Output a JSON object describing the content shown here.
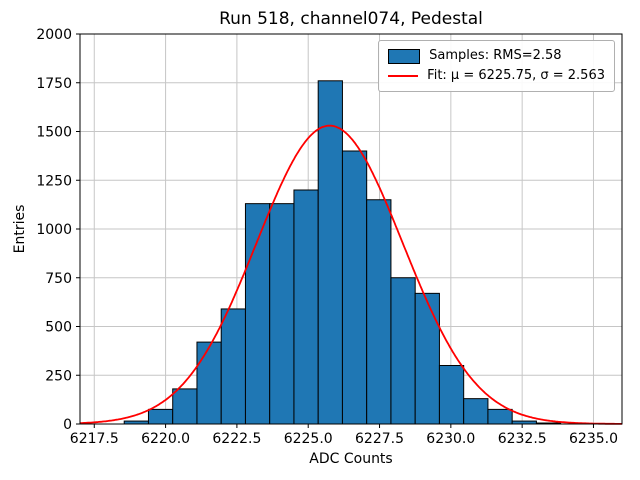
{
  "figure": {
    "title": "Run 518, channel074, Pedestal",
    "xlabel": "ADC Counts",
    "ylabel": "Entries"
  },
  "legend": {
    "samples_label": "Samples: RMS=2.58",
    "fit_label": "Fit: μ = 6225.75, σ = 2.563"
  },
  "chart_data": {
    "type": "bar",
    "subtype": "histogram",
    "title": "Run 518, channel074, Pedestal",
    "xlabel": "ADC Counts",
    "ylabel": "Entries",
    "xlim": [
      6217.0,
      6236.0
    ],
    "ylim": [
      0,
      2000
    ],
    "grid": true,
    "grid_color": "#c6c6c6",
    "legend_position": "upper right",
    "legend_entries": [
      "Samples: RMS=2.58",
      "Fit: μ = 6225.75, σ = 2.563"
    ],
    "xticks": [
      {
        "value": 6217.5,
        "label": "6217.5"
      },
      {
        "value": 6220.0,
        "label": "6220.0"
      },
      {
        "value": 6222.5,
        "label": "6222.5"
      },
      {
        "value": 6225.0,
        "label": "6225.0"
      },
      {
        "value": 6227.5,
        "label": "6227.5"
      },
      {
        "value": 6230.0,
        "label": "6230.0"
      },
      {
        "value": 6232.5,
        "label": "6232.5"
      },
      {
        "value": 6235.0,
        "label": "6235.0"
      }
    ],
    "yticks": [
      {
        "value": 0,
        "label": "0"
      },
      {
        "value": 250,
        "label": "250"
      },
      {
        "value": 500,
        "label": "500"
      },
      {
        "value": 750,
        "label": "750"
      },
      {
        "value": 1000,
        "label": "1000"
      },
      {
        "value": 1250,
        "label": "1250"
      },
      {
        "value": 1500,
        "label": "1500"
      },
      {
        "value": 1750,
        "label": "1750"
      },
      {
        "value": 2000,
        "label": "2000"
      }
    ],
    "histogram": {
      "bin_start": 6218.55,
      "bin_width": 0.85,
      "counts": [
        15,
        75,
        180,
        420,
        590,
        1130,
        1130,
        1200,
        1760,
        1400,
        1150,
        750,
        670,
        300,
        130,
        75,
        15,
        5
      ],
      "color": "#1f77b4",
      "edge_color": "#000000",
      "rms": 2.58
    },
    "fit": {
      "type": "gaussian",
      "mu": 6225.75,
      "sigma": 2.563,
      "amplitude": 1530,
      "color": "#ff0000"
    }
  }
}
